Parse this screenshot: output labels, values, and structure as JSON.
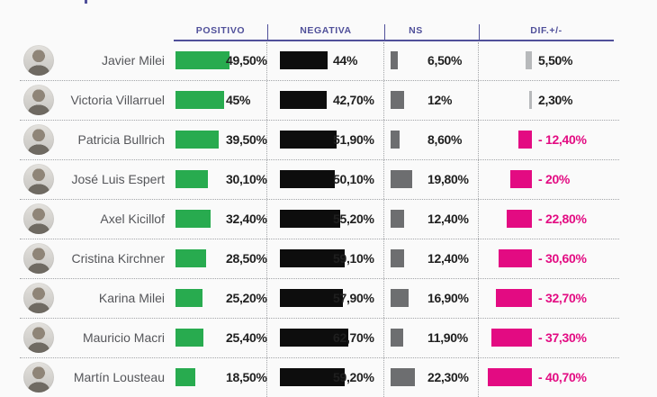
{
  "header": {
    "positivo": "POSITIVO",
    "negativa": "NEGATIVA",
    "ns": "NS",
    "dif": "DIF.+/-"
  },
  "rows": [
    {
      "name": "Javier Milei",
      "positivo": {
        "value": 49.5,
        "label": "49,50%"
      },
      "negativa": {
        "value": 44.0,
        "label": "44%"
      },
      "ns": {
        "value": 6.5,
        "label": "6,50%"
      },
      "dif": {
        "value": 5.5,
        "label": "5,50%"
      }
    },
    {
      "name": "Victoria Villarruel",
      "positivo": {
        "value": 45.0,
        "label": "45%"
      },
      "negativa": {
        "value": 42.7,
        "label": "42,70%"
      },
      "ns": {
        "value": 12.0,
        "label": "12%"
      },
      "dif": {
        "value": 2.3,
        "label": "2,30%"
      }
    },
    {
      "name": "Patricia Bullrich",
      "positivo": {
        "value": 39.5,
        "label": "39,50%"
      },
      "negativa": {
        "value": 51.9,
        "label": "51,90%"
      },
      "ns": {
        "value": 8.6,
        "label": "8,60%"
      },
      "dif": {
        "value": -12.4,
        "label": "- 12,40%"
      }
    },
    {
      "name": "José Luis Espert",
      "positivo": {
        "value": 30.1,
        "label": "30,10%"
      },
      "negativa": {
        "value": 50.1,
        "label": "50,10%"
      },
      "ns": {
        "value": 19.8,
        "label": "19,80%"
      },
      "dif": {
        "value": -20.0,
        "label": "- 20%"
      }
    },
    {
      "name": "Axel Kicillof",
      "positivo": {
        "value": 32.4,
        "label": "32,40%"
      },
      "negativa": {
        "value": 55.2,
        "label": "55,20%"
      },
      "ns": {
        "value": 12.4,
        "label": "12,40%"
      },
      "dif": {
        "value": -22.8,
        "label": "- 22,80%"
      }
    },
    {
      "name": "Cristina Kirchner",
      "positivo": {
        "value": 28.5,
        "label": "28,50%"
      },
      "negativa": {
        "value": 59.1,
        "label": "59,10%"
      },
      "ns": {
        "value": 12.4,
        "label": "12,40%"
      },
      "dif": {
        "value": -30.6,
        "label": "- 30,60%"
      }
    },
    {
      "name": "Karina Milei",
      "positivo": {
        "value": 25.2,
        "label": "25,20%"
      },
      "negativa": {
        "value": 57.9,
        "label": "57,90%"
      },
      "ns": {
        "value": 16.9,
        "label": "16,90%"
      },
      "dif": {
        "value": -32.7,
        "label": "- 32,70%"
      }
    },
    {
      "name": "Mauricio Macri",
      "positivo": {
        "value": 25.4,
        "label": "25,40%"
      },
      "negativa": {
        "value": 62.7,
        "label": "62,70%"
      },
      "ns": {
        "value": 11.9,
        "label": "11,90%"
      },
      "dif": {
        "value": -37.3,
        "label": "- 37,30%"
      }
    },
    {
      "name": "Martín Lousteau",
      "positivo": {
        "value": 18.5,
        "label": "18,50%"
      },
      "negativa": {
        "value": 59.2,
        "label": "59,20%"
      },
      "ns": {
        "value": 22.3,
        "label": "22,30%"
      },
      "dif": {
        "value": -40.7,
        "label": "- 40,70%"
      }
    }
  ],
  "colors": {
    "positive_bar": "#28ab4f",
    "negative_bar": "#0d0d0d",
    "ns_bar": "#6d6e70",
    "dif_positive_bar": "#b7b9bb",
    "dif_negative": "#e30b82",
    "header": "#50509a",
    "name_text": "#55565a",
    "value_text": "#1f1f1f"
  },
  "chart_data": {
    "type": "bar",
    "orientation": "horizontal",
    "unit": "%",
    "categories": [
      "Javier Milei",
      "Victoria Villarruel",
      "Patricia Bullrich",
      "José Luis Espert",
      "Axel Kicillof",
      "Cristina Kirchner",
      "Karina Milei",
      "Mauricio Macri",
      "Martín Lousteau"
    ],
    "series": [
      {
        "name": "POSITIVO",
        "color": "#28ab4f",
        "values": [
          49.5,
          45.0,
          39.5,
          30.1,
          32.4,
          28.5,
          25.2,
          25.4,
          18.5
        ]
      },
      {
        "name": "NEGATIVA",
        "color": "#0d0d0d",
        "values": [
          44.0,
          42.7,
          51.9,
          50.1,
          55.2,
          59.1,
          57.9,
          62.7,
          59.2
        ]
      },
      {
        "name": "NS",
        "color": "#6d6e70",
        "values": [
          6.5,
          12.0,
          8.6,
          19.8,
          12.4,
          12.4,
          16.9,
          11.9,
          22.3
        ]
      },
      {
        "name": "DIF.+/-",
        "color_positive": "#b7b9bb",
        "color_negative": "#e30b82",
        "values": [
          5.5,
          2.3,
          -12.4,
          -20.0,
          -22.8,
          -30.6,
          -32.7,
          -37.3,
          -40.7
        ]
      }
    ],
    "title": "",
    "xlabel": "",
    "ylabel": "",
    "xlim": [
      0,
      70
    ],
    "grid": false,
    "legend_position": "column headers, top"
  }
}
